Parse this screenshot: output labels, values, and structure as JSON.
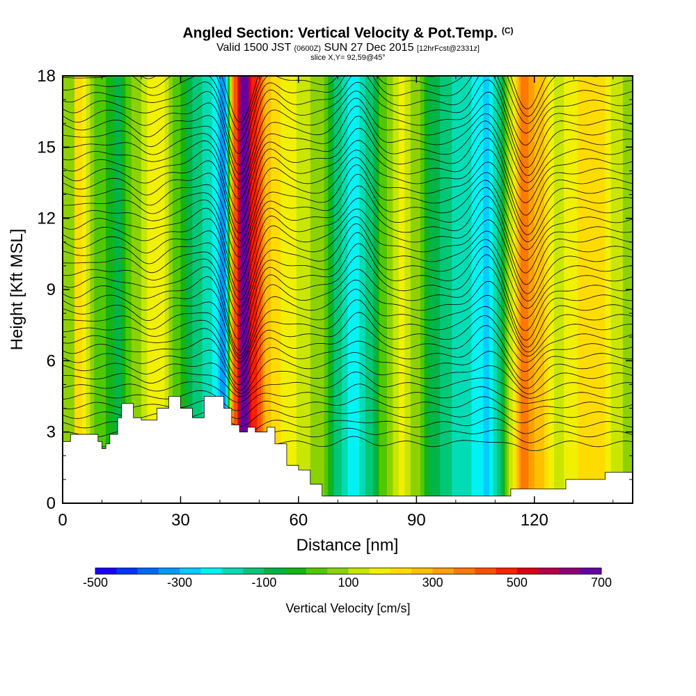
{
  "header": {
    "title": "Angled Section: Vertical Velocity & Pot.Temp.",
    "copyright": "(C)",
    "valid_prefix": "Valid 1500 JST",
    "valid_utc": "(0600Z)",
    "valid_date": "SUN 27 Dec 2015",
    "forecast": "[12hrFcst@2331z]",
    "slice": "slice X,Y= 92,59@45°"
  },
  "chart_data": {
    "type": "heatmap",
    "xlabel": "Distance [nm]",
    "ylabel": "Height [Kft MSL]",
    "xlim": [
      0,
      145
    ],
    "ylim": [
      0,
      18
    ],
    "xticks": [
      0,
      30,
      60,
      90,
      120
    ],
    "yticks": [
      0,
      3,
      6,
      9,
      12,
      15,
      18
    ],
    "colorbar": {
      "label": "Vertical Velocity [cm/s]",
      "min": -500,
      "max": 700,
      "step": 50,
      "tick_labels": [
        "-500",
        "-300",
        "-100",
        "100",
        "300",
        "500",
        "700"
      ],
      "tick_values": [
        -500,
        -300,
        -100,
        100,
        300,
        500,
        700
      ]
    },
    "velocity_columns": [
      {
        "x": 3,
        "w": 250
      },
      {
        "x": 9,
        "w": 40
      },
      {
        "x": 14,
        "w": -60
      },
      {
        "x": 19,
        "w": 90
      },
      {
        "x": 24,
        "w": 200
      },
      {
        "x": 29,
        "w": 30
      },
      {
        "x": 33,
        "w": -100
      },
      {
        "x": 38,
        "w": -200
      },
      {
        "x": 41,
        "w": -320
      },
      {
        "x": 44,
        "w": 420
      },
      {
        "x": 46,
        "w": 690
      },
      {
        "x": 49,
        "w": 460
      },
      {
        "x": 53,
        "w": 250
      },
      {
        "x": 57,
        "w": 180
      },
      {
        "x": 62,
        "w": 110
      },
      {
        "x": 66,
        "w": 60
      },
      {
        "x": 70,
        "w": -120
      },
      {
        "x": 74,
        "w": -250
      },
      {
        "x": 78,
        "w": -120
      },
      {
        "x": 82,
        "w": 40
      },
      {
        "x": 86,
        "w": 160
      },
      {
        "x": 90,
        "w": 80
      },
      {
        "x": 94,
        "w": -80
      },
      {
        "x": 99,
        "w": -150
      },
      {
        "x": 104,
        "w": -200
      },
      {
        "x": 108,
        "w": -260
      },
      {
        "x": 111,
        "w": -140
      },
      {
        "x": 114,
        "w": 120
      },
      {
        "x": 117,
        "w": 380
      },
      {
        "x": 121,
        "w": 280
      },
      {
        "x": 126,
        "w": 140
      },
      {
        "x": 131,
        "w": 200
      },
      {
        "x": 136,
        "w": 250
      },
      {
        "x": 141,
        "w": 120
      },
      {
        "x": 145,
        "w": 60
      }
    ],
    "terrain": [
      {
        "x": 0,
        "h": 2.6
      },
      {
        "x": 2,
        "h": 2.9
      },
      {
        "x": 9,
        "h": 2.6
      },
      {
        "x": 10,
        "h": 2.3
      },
      {
        "x": 11,
        "h": 2.5
      },
      {
        "x": 12,
        "h": 2.9
      },
      {
        "x": 14,
        "h": 3.6
      },
      {
        "x": 15,
        "h": 4.2
      },
      {
        "x": 18,
        "h": 3.6
      },
      {
        "x": 20,
        "h": 3.5
      },
      {
        "x": 24,
        "h": 4.0
      },
      {
        "x": 27,
        "h": 4.5
      },
      {
        "x": 30,
        "h": 4.0
      },
      {
        "x": 33,
        "h": 3.6
      },
      {
        "x": 36,
        "h": 4.5
      },
      {
        "x": 41,
        "h": 4.0
      },
      {
        "x": 43,
        "h": 3.3
      },
      {
        "x": 45,
        "h": 3.0
      },
      {
        "x": 47,
        "h": 3.2
      },
      {
        "x": 49,
        "h": 3.0
      },
      {
        "x": 52,
        "h": 3.2
      },
      {
        "x": 54,
        "h": 2.5
      },
      {
        "x": 57,
        "h": 1.6
      },
      {
        "x": 60,
        "h": 1.4
      },
      {
        "x": 63,
        "h": 0.8
      },
      {
        "x": 66,
        "h": 0.3
      },
      {
        "x": 75,
        "h": 0.3
      },
      {
        "x": 85,
        "h": 0.3
      },
      {
        "x": 100,
        "h": 0.3
      },
      {
        "x": 113,
        "h": 0.3
      },
      {
        "x": 114,
        "h": 0.6
      },
      {
        "x": 121,
        "h": 0.6
      },
      {
        "x": 128,
        "h": 1.0
      },
      {
        "x": 138,
        "h": 1.3
      },
      {
        "x": 145,
        "h": 1.3
      }
    ],
    "isentropes": {
      "count": 40,
      "bottom_kft": 2.5,
      "top_kft": 18.5,
      "perturbations": [
        {
          "x": 45,
          "dy": -2.6
        },
        {
          "x": 38,
          "dy": 0.5
        },
        {
          "x": 52,
          "dy": 0.6
        },
        {
          "x": 75,
          "dy": 1.4
        },
        {
          "x": 108,
          "dy": 1.3
        },
        {
          "x": 118,
          "dy": -1.8
        },
        {
          "x": 22,
          "dy": -0.5
        },
        {
          "x": 3,
          "dy": -0.3
        }
      ]
    }
  }
}
